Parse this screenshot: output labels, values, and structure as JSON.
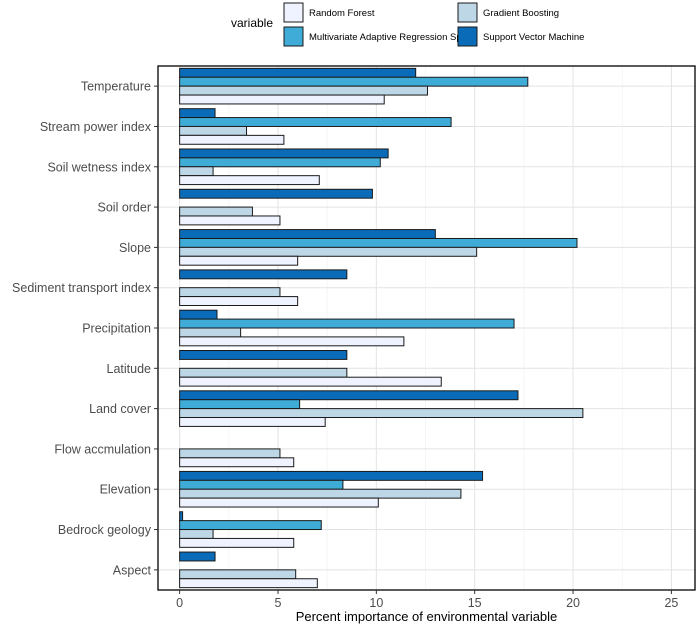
{
  "chart_data": {
    "type": "bar",
    "orientation": "horizontal",
    "title": "",
    "xlabel": "Percent importance of environmental variable",
    "ylabel": "",
    "xlim": [
      -1.1,
      26.2
    ],
    "xticks": [
      0,
      5,
      10,
      15,
      20,
      25
    ],
    "grid": true,
    "legend_title": "variable",
    "legend_position": "top",
    "categories": [
      "Temperature",
      "Stream power index",
      "Soil wetness index",
      "Soil order",
      "Slope",
      "Sediment transport index",
      "Precipitation",
      "Latitude",
      "Land cover",
      "Flow accmulation",
      "Elevation",
      "Bedrock geology",
      "Aspect"
    ],
    "series": [
      {
        "name": "Random Forest",
        "color": "#eff3ff",
        "values": [
          10.4,
          5.3,
          7.1,
          5.1,
          6.0,
          6.0,
          11.4,
          13.3,
          7.4,
          5.8,
          10.1,
          5.8,
          7.0
        ]
      },
      {
        "name": "Gradient Boosting",
        "color": "#bdd7e7",
        "values": [
          12.6,
          3.4,
          1.7,
          3.7,
          15.1,
          5.1,
          3.1,
          8.5,
          20.5,
          5.1,
          14.3,
          1.7,
          5.9
        ]
      },
      {
        "name": "Multivariate Adaptive Regression Spline",
        "color": "#3fabd7",
        "values": [
          17.7,
          13.8,
          10.2,
          0,
          20.2,
          0,
          17.0,
          0,
          6.1,
          0,
          8.3,
          7.2,
          0
        ]
      },
      {
        "name": "Support Vector Machine",
        "color": "#0a6cb8",
        "values": [
          12.0,
          1.8,
          10.6,
          9.8,
          13.0,
          8.5,
          1.9,
          8.5,
          17.2,
          0,
          15.4,
          0.15,
          1.8
        ]
      }
    ]
  }
}
